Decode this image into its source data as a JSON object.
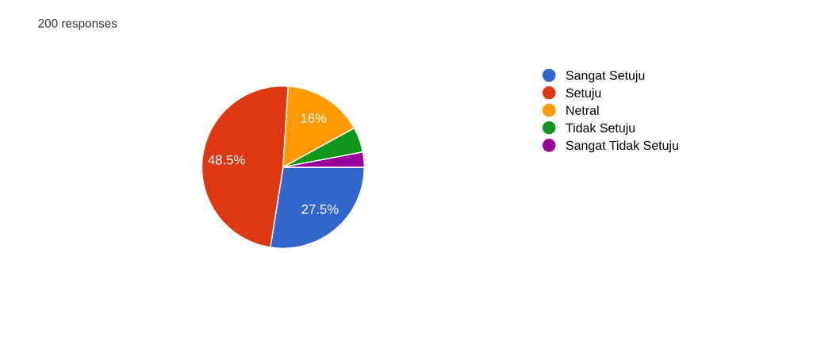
{
  "chart_data": {
    "type": "pie",
    "title": "200 responses",
    "categories": [
      "Sangat Setuju",
      "Setuju",
      "Netral",
      "Tidak Setuju",
      "Sangat Tidak Setuju"
    ],
    "values": [
      27.5,
      48.5,
      16,
      5,
      3
    ],
    "colors": [
      "#3366cc",
      "#dc3912",
      "#ff9900",
      "#109618",
      "#990099"
    ],
    "value_labels": [
      "27.5%",
      "48.5%",
      "16%",
      null,
      null
    ],
    "legend": "right"
  }
}
